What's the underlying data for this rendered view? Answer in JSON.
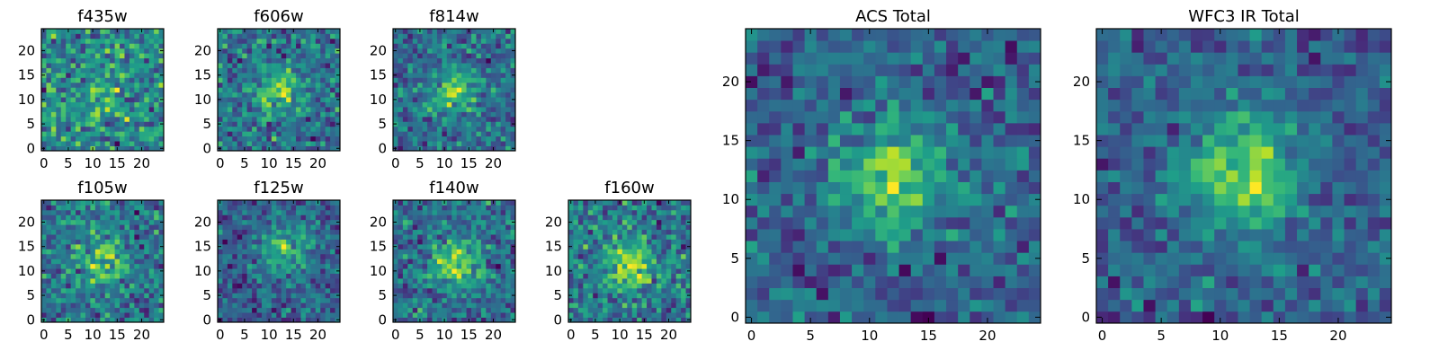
{
  "chart_data": [
    {
      "type": "heatmap",
      "title": "f435w",
      "xticks": [
        0,
        5,
        10,
        15,
        20
      ],
      "yticks": [
        0,
        5,
        10,
        15,
        20
      ],
      "xlim": [
        -0.5,
        24.5
      ],
      "ylim": [
        -0.5,
        24.5
      ],
      "grid_size": 25,
      "colormap": "viridis",
      "peak": [
        12,
        12
      ],
      "peak_strength": 0.15,
      "noise": 0.95,
      "seed": 11
    },
    {
      "type": "heatmap",
      "title": "f606w",
      "xticks": [
        0,
        5,
        10,
        15,
        20
      ],
      "yticks": [
        0,
        5,
        10,
        15,
        20
      ],
      "xlim": [
        -0.5,
        24.5
      ],
      "ylim": [
        -0.5,
        24.5
      ],
      "grid_size": 25,
      "colormap": "viridis",
      "peak": [
        12,
        12
      ],
      "peak_strength": 0.35,
      "noise": 0.85,
      "seed": 23
    },
    {
      "type": "heatmap",
      "title": "f814w",
      "xticks": [
        0,
        5,
        10,
        15,
        20
      ],
      "yticks": [
        0,
        5,
        10,
        15,
        20
      ],
      "xlim": [
        -0.5,
        24.5
      ],
      "ylim": [
        -0.5,
        24.5
      ],
      "grid_size": 25,
      "colormap": "viridis",
      "peak": [
        12,
        12
      ],
      "peak_strength": 0.4,
      "noise": 0.85,
      "seed": 37
    },
    {
      "type": "heatmap",
      "title": "f105w",
      "xticks": [
        0,
        5,
        10,
        15,
        20
      ],
      "yticks": [
        0,
        5,
        10,
        15,
        20
      ],
      "xlim": [
        -0.5,
        24.5
      ],
      "ylim": [
        -0.5,
        24.5
      ],
      "grid_size": 25,
      "colormap": "viridis",
      "peak": [
        12,
        12
      ],
      "peak_strength": 0.3,
      "noise": 0.75,
      "seed": 41
    },
    {
      "type": "heatmap",
      "title": "f125w",
      "xticks": [
        0,
        5,
        10,
        15,
        20
      ],
      "yticks": [
        0,
        5,
        10,
        15,
        20
      ],
      "xlim": [
        -0.5,
        24.5
      ],
      "ylim": [
        -0.5,
        24.5
      ],
      "grid_size": 25,
      "colormap": "viridis",
      "peak": [
        13,
        14
      ],
      "peak_strength": 0.4,
      "noise": 0.75,
      "seed": 53
    },
    {
      "type": "heatmap",
      "title": "f140w",
      "xticks": [
        0,
        5,
        10,
        15,
        20
      ],
      "yticks": [
        0,
        5,
        10,
        15,
        20
      ],
      "xlim": [
        -0.5,
        24.5
      ],
      "ylim": [
        -0.5,
        24.5
      ],
      "grid_size": 25,
      "colormap": "viridis",
      "peak": [
        12,
        12
      ],
      "peak_strength": 0.45,
      "noise": 0.75,
      "seed": 67
    },
    {
      "type": "heatmap",
      "title": "f160w",
      "xticks": [
        0,
        5,
        10,
        15,
        20
      ],
      "yticks": [
        0,
        5,
        10,
        15,
        20
      ],
      "xlim": [
        -0.5,
        24.5
      ],
      "ylim": [
        -0.5,
        24.5
      ],
      "grid_size": 25,
      "colormap": "viridis",
      "peak": [
        12,
        11
      ],
      "peak_strength": 0.4,
      "noise": 0.8,
      "seed": 79
    },
    {
      "type": "heatmap",
      "title": "ACS Total",
      "xticks": [
        0,
        5,
        10,
        15,
        20
      ],
      "yticks": [
        0,
        5,
        10,
        15,
        20
      ],
      "xlim": [
        -0.5,
        24.5
      ],
      "ylim": [
        -0.5,
        24.5
      ],
      "grid_size": 25,
      "colormap": "viridis",
      "peak": [
        12,
        12
      ],
      "peak_strength": 0.45,
      "noise": 0.7,
      "seed": 83
    },
    {
      "type": "heatmap",
      "title": "WFC3 IR Total",
      "xticks": [
        0,
        5,
        10,
        15,
        20
      ],
      "yticks": [
        0,
        5,
        10,
        15,
        20
      ],
      "xlim": [
        -0.5,
        24.5
      ],
      "ylim": [
        -0.5,
        24.5
      ],
      "grid_size": 25,
      "colormap": "viridis",
      "peak": [
        12,
        12
      ],
      "peak_strength": 0.5,
      "noise": 0.6,
      "seed": 97
    }
  ],
  "colors": {
    "viridis": [
      "#440154",
      "#482878",
      "#3e4989",
      "#31688e",
      "#26828e",
      "#1f9e89",
      "#35b779",
      "#6ece58",
      "#b5de2b",
      "#fde725"
    ]
  }
}
